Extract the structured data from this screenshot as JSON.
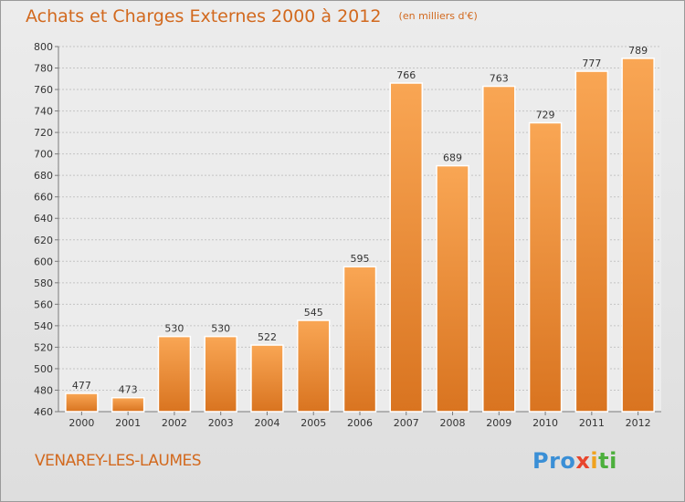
{
  "title": "Achats et Charges Externes 2000 à 2012",
  "unit": "(en milliers d'€)",
  "city": "VENAREY-LES-LAUMES",
  "logo": {
    "p1": "Pro",
    "p2": "x",
    "p3": "i",
    "p4": "ti"
  },
  "colors": {
    "bar_top": "#f9a654",
    "bar_bottom": "#d97420",
    "text_accent": "#d2691e"
  },
  "chart_data": {
    "type": "bar",
    "categories": [
      "2000",
      "2001",
      "2002",
      "2003",
      "2004",
      "2005",
      "2006",
      "2007",
      "2008",
      "2009",
      "2010",
      "2011",
      "2012"
    ],
    "values": [
      477,
      473,
      530,
      530,
      522,
      545,
      595,
      766,
      689,
      763,
      729,
      777,
      789
    ],
    "ylim": [
      460,
      800
    ],
    "yticks": [
      460,
      480,
      500,
      520,
      540,
      560,
      580,
      600,
      620,
      640,
      660,
      680,
      700,
      720,
      740,
      760,
      780,
      800
    ],
    "grid": true,
    "data_labels": true
  }
}
